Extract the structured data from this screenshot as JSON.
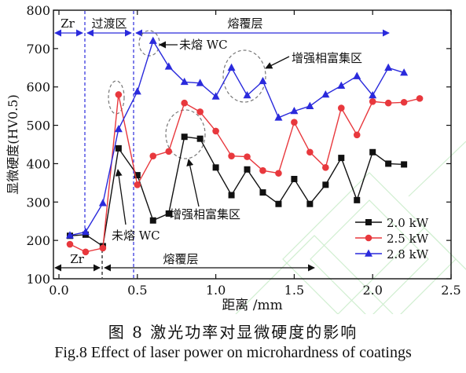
{
  "chart_data": {
    "type": "line",
    "xlabel": "距离 /mm",
    "ylabel": "显微硬度(HV0.5)",
    "xlim": [
      0.0,
      2.5
    ],
    "ylim": [
      100,
      800
    ],
    "xticks": [
      0.0,
      0.5,
      1.0,
      1.5,
      2.0,
      2.5
    ],
    "yticks": [
      100,
      200,
      300,
      400,
      500,
      600,
      700,
      800
    ],
    "legend_position": "bottom-right",
    "series": [
      {
        "name": "2.0 kW",
        "color": "#111111",
        "marker": "square",
        "x": [
          0.07,
          0.17,
          0.28,
          0.38,
          0.5,
          0.6,
          0.7,
          0.8,
          0.9,
          1.0,
          1.1,
          1.2,
          1.3,
          1.4,
          1.5,
          1.6,
          1.7,
          1.8,
          1.9,
          2.0,
          2.1,
          2.2
        ],
        "values": [
          212,
          215,
          185,
          440,
          370,
          252,
          270,
          470,
          465,
          390,
          318,
          385,
          325,
          295,
          360,
          295,
          345,
          415,
          305,
          430,
          400,
          398
        ]
      },
      {
        "name": "2.5 kW",
        "color": "#e8383d",
        "marker": "circle",
        "x": [
          0.07,
          0.17,
          0.28,
          0.38,
          0.5,
          0.6,
          0.7,
          0.8,
          0.9,
          1.0,
          1.1,
          1.2,
          1.3,
          1.4,
          1.5,
          1.6,
          1.7,
          1.8,
          1.9,
          2.0,
          2.1,
          2.2,
          2.3
        ],
        "values": [
          190,
          170,
          180,
          580,
          345,
          420,
          432,
          558,
          535,
          485,
          420,
          418,
          382,
          375,
          508,
          430,
          390,
          545,
          475,
          562,
          558,
          560,
          570
        ]
      },
      {
        "name": "2.8 kW",
        "color": "#2a2adc",
        "marker": "triangle",
        "x": [
          0.07,
          0.17,
          0.28,
          0.38,
          0.5,
          0.6,
          0.7,
          0.8,
          0.9,
          1.0,
          1.1,
          1.2,
          1.3,
          1.4,
          1.5,
          1.6,
          1.7,
          1.8,
          1.9,
          2.0,
          2.1,
          2.2
        ],
        "values": [
          213,
          222,
          297,
          490,
          588,
          720,
          653,
          613,
          610,
          575,
          650,
          578,
          615,
          520,
          537,
          550,
          580,
          603,
          628,
          578,
          650,
          637
        ]
      }
    ],
    "annotations": {
      "top_zr": "Zr",
      "top_transition": "过渡区",
      "top_cladding": "熔覆层",
      "unmelted_top": "未熔 WC",
      "enriched_top": "增强相富集区",
      "unmelted_bottom": "未熔 WC",
      "enriched_bottom": "增强相富集区",
      "bottom_zr": "Zr",
      "bottom_cladding": "熔覆层"
    }
  },
  "caption": {
    "chinese": "图 8  激光功率对显微硬度的影响",
    "english": "Fig.8  Effect of laser power on microhardness of coatings"
  }
}
